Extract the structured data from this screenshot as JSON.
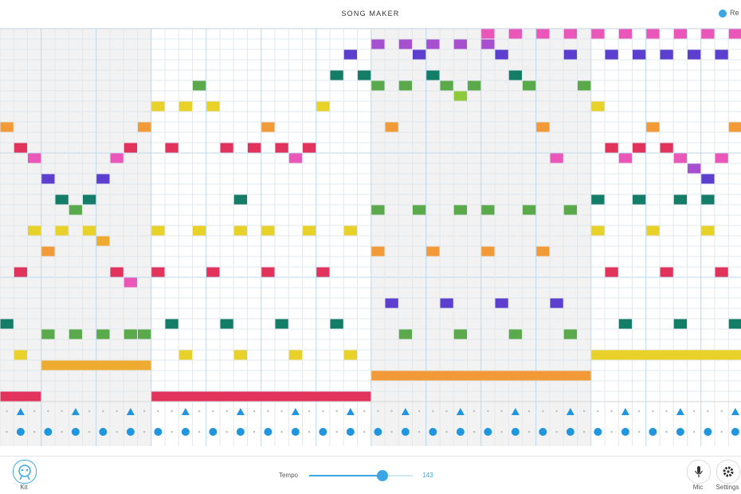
{
  "header": {
    "title": "SONG MAKER",
    "restart": "Re"
  },
  "toolbar": {
    "kit": "Kit",
    "tempo_label": "Tempo",
    "tempo_value": 143,
    "mic": "Mic",
    "settings": "Settings"
  }
}
